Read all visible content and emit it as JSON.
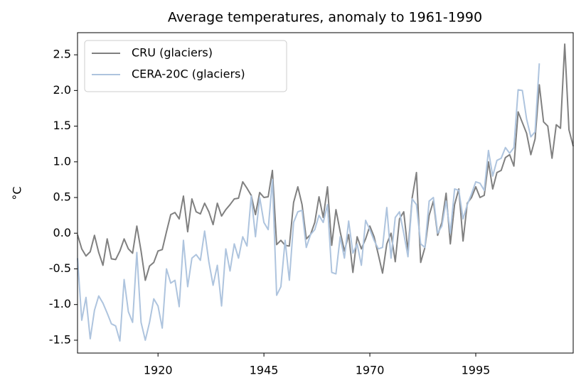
{
  "chart_data": {
    "type": "line",
    "title": "Average temperatures, anomaly to 1961-1990",
    "y_label": "°C",
    "x": [
      1901,
      1902,
      1903,
      1904,
      1905,
      1906,
      1907,
      1908,
      1909,
      1910,
      1911,
      1912,
      1913,
      1914,
      1915,
      1916,
      1917,
      1918,
      1919,
      1920,
      1921,
      1922,
      1923,
      1924,
      1925,
      1926,
      1927,
      1928,
      1929,
      1930,
      1931,
      1932,
      1933,
      1934,
      1935,
      1936,
      1937,
      1938,
      1939,
      1940,
      1941,
      1942,
      1943,
      1944,
      1945,
      1946,
      1947,
      1948,
      1949,
      1950,
      1951,
      1952,
      1953,
      1954,
      1955,
      1956,
      1957,
      1958,
      1959,
      1960,
      1961,
      1962,
      1963,
      1964,
      1965,
      1966,
      1967,
      1968,
      1969,
      1970,
      1971,
      1972,
      1973,
      1974,
      1975,
      1976,
      1977,
      1978,
      1979,
      1980,
      1981,
      1982,
      1983,
      1984,
      1985,
      1986,
      1987,
      1988,
      1989,
      1990,
      1991,
      1992,
      1993,
      1994,
      1995,
      1996,
      1997,
      1998,
      1999,
      2000,
      2001,
      2002,
      2003,
      2004,
      2005,
      2006,
      2007,
      2008,
      2009,
      2010,
      2011,
      2012,
      2013,
      2014,
      2015,
      2016,
      2017,
      2018
    ],
    "series": [
      {
        "name": "CRU (glaciers)",
        "color": "#808080",
        "values": [
          -0.02,
          -0.22,
          -0.32,
          -0.26,
          -0.03,
          -0.27,
          -0.45,
          -0.08,
          -0.36,
          -0.37,
          -0.25,
          -0.08,
          -0.22,
          -0.28,
          0.1,
          -0.25,
          -0.66,
          -0.46,
          -0.41,
          -0.25,
          -0.23,
          0.02,
          0.26,
          0.29,
          0.2,
          0.52,
          0.02,
          0.48,
          0.3,
          0.27,
          0.42,
          0.3,
          0.12,
          0.42,
          0.24,
          0.33,
          0.4,
          0.48,
          0.49,
          0.72,
          0.63,
          0.53,
          0.26,
          0.57,
          0.5,
          0.51,
          0.88,
          -0.16,
          -0.1,
          -0.17,
          -0.18,
          0.43,
          0.65,
          0.4,
          -0.08,
          -0.02,
          0.15,
          0.51,
          0.22,
          0.65,
          -0.17,
          0.33,
          0.02,
          -0.25,
          -0.02,
          -0.55,
          -0.05,
          -0.22,
          -0.08,
          0.1,
          -0.05,
          -0.3,
          -0.56,
          -0.15,
          0.0,
          -0.4,
          0.2,
          0.3,
          -0.25,
          0.5,
          0.85,
          -0.41,
          -0.2,
          0.25,
          0.45,
          -0.03,
          0.15,
          0.56,
          -0.15,
          0.4,
          0.62,
          -0.11,
          0.42,
          0.5,
          0.65,
          0.5,
          0.53,
          1.0,
          0.62,
          0.85,
          0.88,
          1.06,
          1.1,
          0.94,
          1.7,
          1.55,
          1.4,
          1.1,
          1.32,
          2.08,
          1.56,
          1.5,
          1.05,
          1.52,
          1.47,
          2.65,
          1.45,
          1.22
        ]
      },
      {
        "name": "CERA-20C (glaciers)",
        "color": "#aec4de",
        "values": [
          -0.35,
          -1.22,
          -0.9,
          -1.48,
          -1.08,
          -0.88,
          -0.98,
          -1.12,
          -1.27,
          -1.3,
          -1.51,
          -0.65,
          -1.1,
          -1.25,
          -0.27,
          -1.25,
          -1.5,
          -1.25,
          -0.92,
          -1.02,
          -1.33,
          -0.5,
          -0.7,
          -0.66,
          -1.03,
          -0.1,
          -0.75,
          -0.35,
          -0.3,
          -0.38,
          0.03,
          -0.4,
          -0.73,
          -0.45,
          -1.02,
          -0.22,
          -0.53,
          -0.15,
          -0.35,
          -0.05,
          -0.18,
          0.52,
          -0.05,
          0.5,
          0.15,
          0.05,
          0.75,
          -0.87,
          -0.75,
          -0.1,
          -0.66,
          0.15,
          0.3,
          0.32,
          -0.2,
          -0.02,
          0.05,
          0.25,
          0.15,
          0.4,
          -0.55,
          -0.57,
          -0.05,
          -0.35,
          0.17,
          -0.28,
          -0.15,
          -0.45,
          0.18,
          0.05,
          -0.1,
          -0.22,
          -0.2,
          0.36,
          -0.35,
          0.22,
          0.3,
          0.0,
          -0.33,
          0.48,
          0.4,
          -0.15,
          -0.2,
          0.45,
          0.5,
          0.0,
          0.1,
          0.45,
          0.0,
          0.62,
          0.6,
          0.2,
          0.4,
          0.55,
          0.72,
          0.7,
          0.6,
          1.16,
          0.8,
          1.02,
          1.05,
          1.2,
          1.12,
          1.2,
          2.01,
          2.0,
          1.6,
          1.35,
          1.42,
          2.38,
          null,
          null,
          null,
          null,
          null,
          null,
          null,
          null
        ]
      }
    ],
    "xlim": [
      1901,
      2018
    ],
    "xticks": [
      1920,
      1945,
      1970,
      1995
    ],
    "ylim": [
      -1.68,
      2.81
    ],
    "yticks": [
      -1.5,
      {
        "value": -1.0,
        "label": "-1.0"
      },
      -0.5,
      {
        "value": 0.0,
        "label": "0.0"
      },
      0.5,
      {
        "value": 1.0,
        "label": "1.0"
      },
      1.5,
      {
        "value": 2.0,
        "label": "2.0"
      },
      2.5
    ],
    "legend": "upper left",
    "grid": false
  }
}
